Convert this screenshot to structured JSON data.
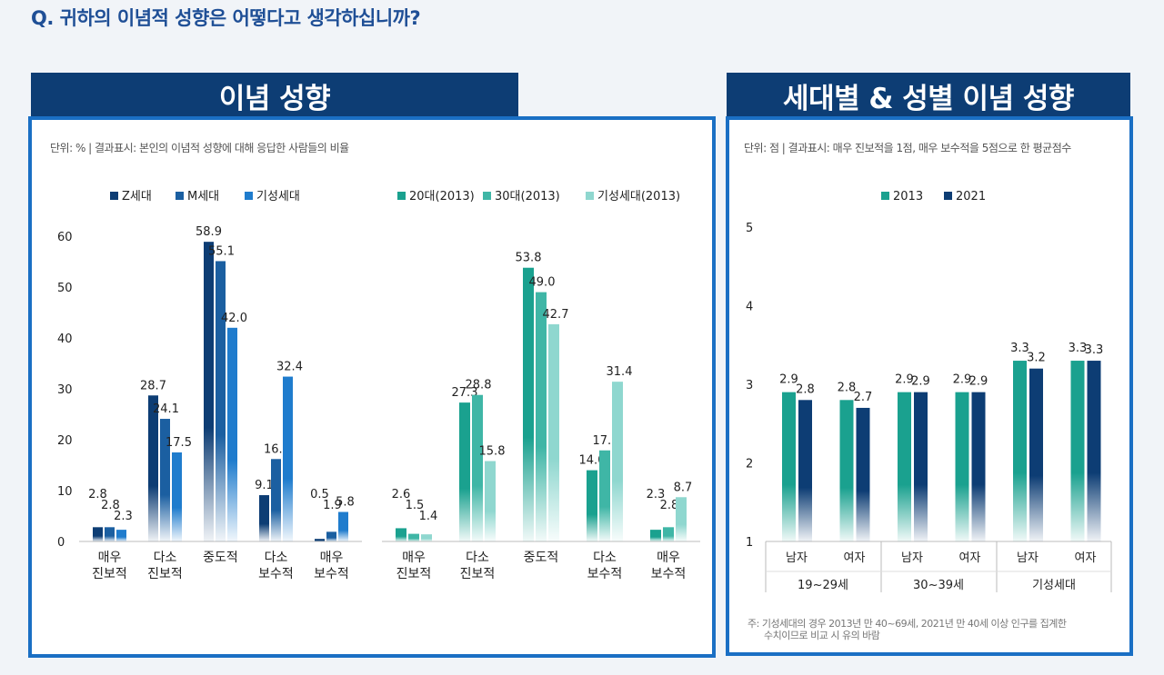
{
  "question": "Q. 귀하의 이념적 성향은 어떻다고 생각하십니까?",
  "left_title": "이념 성향",
  "right_title": "세대별 & 성별 이념 성향",
  "left_unit": "단위: % | 결과표시: 본인의 이념적 성향에 대해 응답한 사람들의 비율",
  "right_unit": "단위: 점 | 결과표시: 매우 진보적을 1점, 매우 보수적을 5점으로 한 평균점수",
  "right_note": [
    "주: 기성세대의 경우 2013년 만 40~69세, 2021년 만 40세 이상 인구를 집계한",
    "수치이므로 비교 시 유의 바람"
  ],
  "colors": {
    "z": "#0d3d74",
    "m": "#1b5fa1",
    "gi": "#1f7ccd",
    "t20": "#1aa18f",
    "t30": "#3fb6a6",
    "tgi": "#8fd7cf",
    "c2013": "#1aa18f",
    "c2021": "#0d3d74"
  },
  "chart_data": [
    {
      "type": "bar",
      "title": "이념 성향 (2021)",
      "categories": [
        [
          "매우",
          "진보적"
        ],
        [
          "다소",
          "진보적"
        ],
        [
          "중도적"
        ],
        [
          "다소",
          "보수적"
        ],
        [
          "매우",
          "보수적"
        ]
      ],
      "series": [
        {
          "name": "Z세대",
          "values": [
            2.8,
            28.7,
            58.9,
            9.1,
            0.5
          ]
        },
        {
          "name": "M세대",
          "values": [
            2.8,
            24.1,
            55.1,
            16.2,
            1.9
          ]
        },
        {
          "name": "기성세대",
          "values": [
            2.3,
            17.5,
            42.0,
            32.4,
            5.8
          ]
        }
      ],
      "y_ticks": [
        0,
        10,
        20,
        30,
        40,
        50,
        60
      ],
      "ylim": [
        0,
        60
      ],
      "legend": "top"
    },
    {
      "type": "bar",
      "title": "이념 성향 (2013)",
      "categories": [
        [
          "매우",
          "진보적"
        ],
        [
          "다소",
          "진보적"
        ],
        [
          "중도적"
        ],
        [
          "다소",
          "보수적"
        ],
        [
          "매우",
          "보수적"
        ]
      ],
      "series": [
        {
          "name": "20대(2013)",
          "values": [
            2.6,
            27.3,
            53.8,
            14.0,
            2.3
          ]
        },
        {
          "name": "30대(2013)",
          "values": [
            1.5,
            28.8,
            49.0,
            17.9,
            2.8
          ]
        },
        {
          "name": "기성세대(2013)",
          "values": [
            1.4,
            15.8,
            42.7,
            31.4,
            8.7
          ]
        }
      ],
      "ylim": [
        0,
        60
      ],
      "legend": "top"
    },
    {
      "type": "bar",
      "title": "세대별 & 성별 이념 성향",
      "categories": [
        "남자",
        "여자",
        "남자",
        "여자",
        "남자",
        "여자"
      ],
      "groups": [
        "19~29세",
        "30~39세",
        "기성세대"
      ],
      "series": [
        {
          "name": "2013",
          "values": [
            2.9,
            2.8,
            2.9,
            2.9,
            3.3,
            3.3
          ]
        },
        {
          "name": "2021",
          "values": [
            2.8,
            2.7,
            2.9,
            2.9,
            3.2,
            3.3
          ]
        }
      ],
      "y_ticks": [
        1,
        2,
        3,
        4,
        5
      ],
      "ylim": [
        1,
        5
      ],
      "legend": "top"
    }
  ]
}
